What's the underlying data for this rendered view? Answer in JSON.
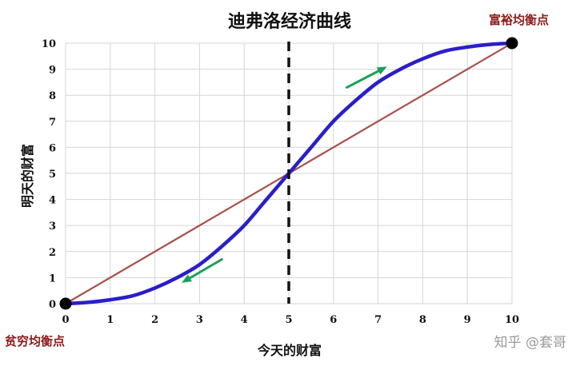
{
  "chart_data": {
    "type": "line",
    "title": "迪弗洛经济曲线",
    "xlabel": "今天的财富",
    "ylabel": "明天的财富",
    "xlim": [
      0,
      10
    ],
    "ylim": [
      0,
      10
    ],
    "x_ticks": [
      "0",
      "1",
      "2",
      "3",
      "4",
      "5",
      "6",
      "7",
      "8",
      "9",
      "10"
    ],
    "y_ticks": [
      "0",
      "1",
      "2",
      "3",
      "4",
      "5",
      "6",
      "7",
      "8",
      "9",
      "10"
    ],
    "grid": true,
    "series": [
      {
        "color": "#a8504a",
        "x": [
          0,
          10
        ],
        "y": [
          0,
          10
        ]
      },
      {
        "color": "#2a1fc8",
        "x": [
          0,
          0.5,
          1,
          1.5,
          2,
          2.5,
          3,
          3.5,
          4,
          4.5,
          5,
          5.5,
          6,
          6.5,
          7,
          7.5,
          8,
          8.5,
          9,
          9.5,
          10
        ],
        "y": [
          0,
          0.05,
          0.15,
          0.3,
          0.6,
          1.0,
          1.5,
          2.2,
          3.0,
          4.0,
          5.0,
          6.0,
          7.0,
          7.8,
          8.5,
          9.0,
          9.4,
          9.7,
          9.85,
          9.95,
          10
        ]
      }
    ],
    "vertical_line": {
      "x": 5,
      "style": "dashed",
      "color": "#111111"
    },
    "points": [
      {
        "x": 0,
        "y": 0,
        "label": "贫穷均衡点"
      },
      {
        "x": 10,
        "y": 10,
        "label": "富裕均衡点"
      }
    ],
    "arrows": [
      {
        "from": [
          3.5,
          1.7
        ],
        "to": [
          2.6,
          0.8
        ],
        "color": "#1aa05a"
      },
      {
        "from": [
          6.3,
          8.3
        ],
        "to": [
          7.2,
          9.1
        ],
        "color": "#1aa05a"
      }
    ],
    "watermark": "知乎 @套哥"
  }
}
